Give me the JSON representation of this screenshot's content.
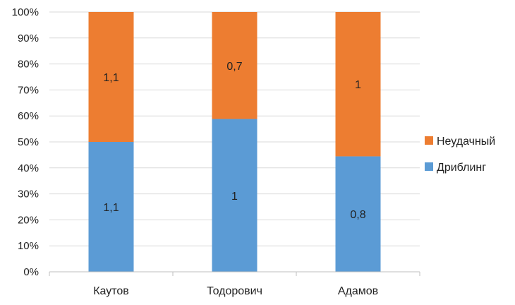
{
  "chart_data": {
    "type": "bar",
    "stacked": "percent",
    "categories": [
      "Каутов",
      "Тодорович",
      "Адамов"
    ],
    "series": [
      {
        "name": "Дриблинг",
        "values": [
          1.1,
          1,
          0.8
        ],
        "labels": [
          "1,1",
          "1",
          "0,8"
        ],
        "color": "#5B9BD5"
      },
      {
        "name": "Неудачный",
        "values": [
          1.1,
          0.7,
          1
        ],
        "labels": [
          "1,1",
          "0,7",
          "1"
        ],
        "color": "#ED7D31"
      }
    ],
    "yticks": [
      "0%",
      "10%",
      "20%",
      "30%",
      "40%",
      "50%",
      "60%",
      "70%",
      "80%",
      "90%",
      "100%"
    ],
    "ylim": [
      0,
      1
    ],
    "grid": true,
    "legend_position": "right"
  }
}
